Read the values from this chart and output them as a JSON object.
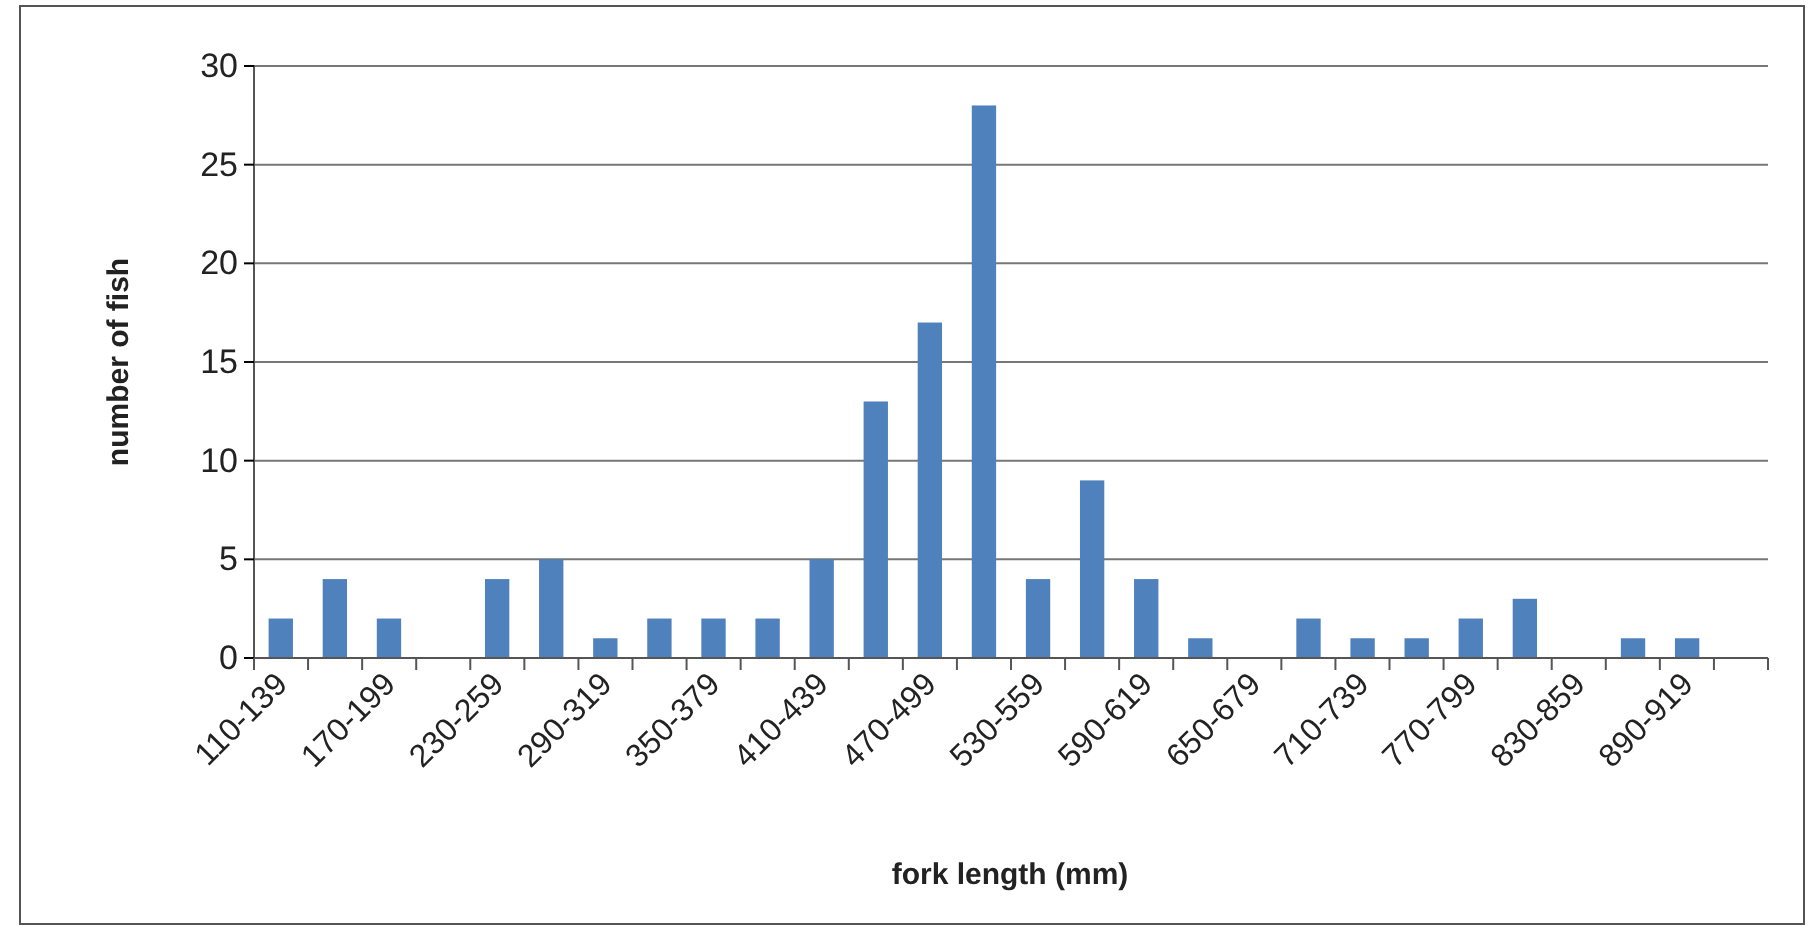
{
  "chart_data": {
    "type": "bar",
    "xlabel": "fork length (mm)",
    "ylabel": "number of fish",
    "categories": [
      "110-139",
      null,
      "170-199",
      null,
      "230-259",
      null,
      "290-319",
      null,
      "350-379",
      null,
      "410-439",
      null,
      "470-499",
      null,
      "530-559",
      null,
      "590-619",
      null,
      "650-679",
      null,
      "710-739",
      null,
      "770-799",
      null,
      "830-859",
      null,
      "890-919",
      null
    ],
    "values": [
      2,
      4,
      2,
      0,
      4,
      5,
      1,
      2,
      2,
      2,
      5,
      13,
      17,
      28,
      4,
      9,
      4,
      1,
      0,
      2,
      1,
      1,
      2,
      3,
      0,
      1,
      1,
      0
    ],
    "color": "#4f81bd",
    "ylim": [
      0,
      30
    ],
    "yticks": [
      0,
      5,
      10,
      15,
      20,
      25,
      30
    ],
    "grid": "y"
  }
}
